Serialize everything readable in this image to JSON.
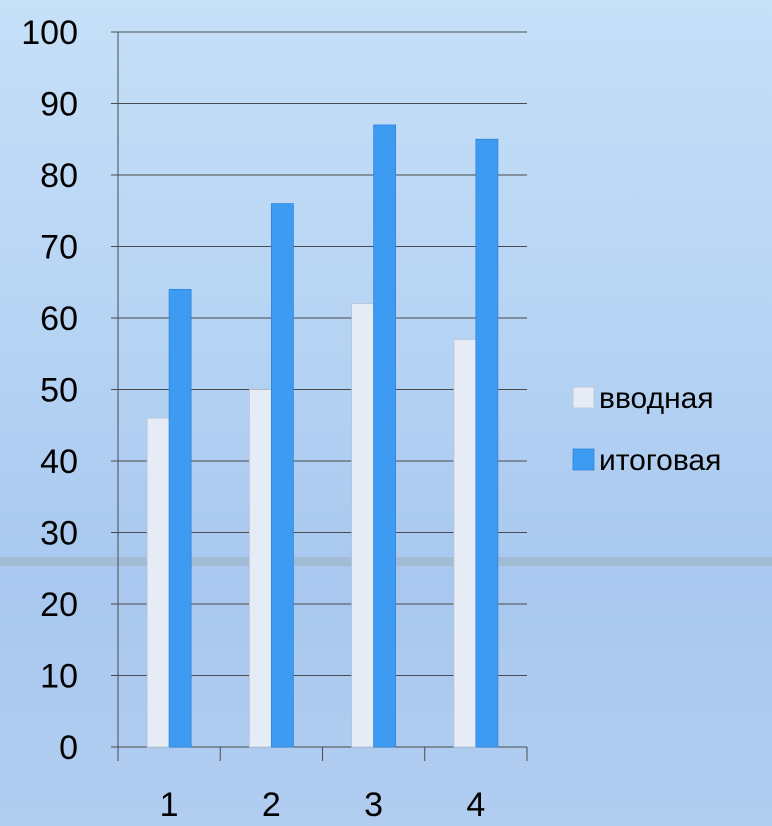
{
  "chart_data": {
    "type": "bar",
    "categories": [
      "1",
      "2",
      "3",
      "4"
    ],
    "series": [
      {
        "name": "вводная",
        "values": [
          46,
          50,
          62,
          57
        ],
        "color": "#e6ecf6"
      },
      {
        "name": "итоговая",
        "values": [
          64,
          76,
          87,
          85
        ],
        "color": "#3d9bf2"
      }
    ],
    "ylim": [
      0,
      100
    ],
    "yticks": [
      0,
      10,
      20,
      30,
      40,
      50,
      60,
      70,
      80,
      90,
      100
    ],
    "grid": true,
    "legend_position": "right",
    "title": "",
    "xlabel": "",
    "ylabel": ""
  }
}
